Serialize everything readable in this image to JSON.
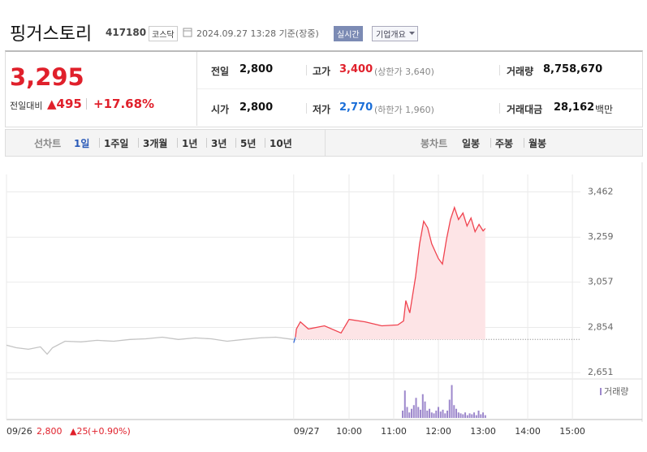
{
  "header": {
    "title": "핑거스토리",
    "code": "417180",
    "market": "코스닥",
    "timestamp": "2024.09.27 13:28 기준(장중)",
    "realtime": "실시간",
    "company_overview": "기업개요"
  },
  "quote": {
    "price": "3,295",
    "change_label": "전일대비",
    "change": "▲495",
    "change_rate": "+17.68%",
    "stats": [
      {
        "label": "전일",
        "value": "2,800"
      },
      {
        "label": "고가",
        "value": "3,400",
        "note": "(상한가 3,640)"
      },
      {
        "label": "거래량",
        "value": "8,758,670"
      },
      {
        "label": "시가",
        "value": "2,800"
      },
      {
        "label": "저가",
        "value": "2,770",
        "note": "(하한가 1,960)"
      },
      {
        "label": "거래대금",
        "value": "28,162",
        "unit": "백만"
      }
    ]
  },
  "tabs": {
    "line_chart": "선차트",
    "line_periods": [
      "1일",
      "1주일",
      "3개월",
      "1년",
      "3년",
      "5년",
      "10년"
    ],
    "candle_chart": "봉차트",
    "candle_periods": [
      "일봉",
      "주봉",
      "월봉"
    ]
  },
  "chart_data": {
    "type": "line",
    "xlim": [
      2.33,
      15.18
    ],
    "ylim": [
      2630,
      3540
    ],
    "xticks": [
      {
        "value": 2.33,
        "label": "09/26"
      },
      {
        "value": 8.76,
        "label": "09/27"
      },
      {
        "value": 10,
        "label": "10:00"
      },
      {
        "value": 11,
        "label": "11:00"
      },
      {
        "value": 12,
        "label": "12:00"
      },
      {
        "value": 13,
        "label": "13:00"
      },
      {
        "value": 14,
        "label": "14:00"
      },
      {
        "value": 15,
        "label": "15:00"
      }
    ],
    "yticks": [
      {
        "value": 3462,
        "label": "3,462"
      },
      {
        "value": 3259,
        "label": "3,259"
      },
      {
        "value": 3057,
        "label": "3,057"
      },
      {
        "value": 2854,
        "label": "2,854"
      },
      {
        "value": 2651,
        "label": "2,651"
      }
    ],
    "reference_value": 2800,
    "prev_day": {
      "close": "2,800",
      "change": "▲25",
      "rate": "(+0.90%)"
    },
    "series": [
      {
        "color": "#c4c4c4",
        "x": [
          2.33,
          2.55,
          2.82,
          3.09,
          3.24,
          3.36,
          3.64,
          4,
          4.36,
          4.73,
          5.09,
          5.45,
          5.82,
          6.18,
          6.55,
          6.91,
          7.27,
          7.64,
          8,
          8.36,
          8.75
        ],
        "values": [
          2774,
          2763,
          2756,
          2767,
          2734,
          2763,
          2792,
          2789,
          2796,
          2792,
          2800,
          2803,
          2810,
          2800,
          2807,
          2803,
          2792,
          2800,
          2807,
          2810,
          2800
        ]
      },
      {
        "color": "#3a6fd8",
        "x": [
          8.76,
          8.8
        ],
        "values": [
          2785,
          2810
        ]
      },
      {
        "color": "#f0434f",
        "fill": "#fde4e6",
        "x": [
          8.8,
          8.82,
          8.91,
          9.09,
          9.45,
          9.82,
          10,
          10.36,
          10.73,
          11.09,
          11.22,
          11.27,
          11.36,
          11.49,
          11.58,
          11.67,
          11.76,
          11.85,
          12,
          12.09,
          12.18,
          12.27,
          12.36,
          12.45,
          12.55,
          12.64,
          12.73,
          12.82,
          12.91,
          13,
          13.05
        ],
        "values": [
          2810,
          2847,
          2879,
          2847,
          2861,
          2829,
          2890,
          2879,
          2861,
          2865,
          2883,
          2974,
          2919,
          3083,
          3229,
          3330,
          3301,
          3229,
          3163,
          3138,
          3247,
          3338,
          3392,
          3338,
          3367,
          3309,
          3345,
          3283,
          3316,
          3287,
          3298
        ]
      }
    ],
    "volume": {
      "name": "거래량",
      "color": "#9d88cc",
      "ylim": [
        0,
        40
      ],
      "x": [
        11.2,
        11.25,
        11.3,
        11.35,
        11.4,
        11.45,
        11.5,
        11.55,
        11.6,
        11.65,
        11.7,
        11.75,
        11.8,
        11.85,
        11.9,
        11.95,
        12,
        12.05,
        12.1,
        12.15,
        12.2,
        12.25,
        12.3,
        12.35,
        12.4,
        12.45,
        12.5,
        12.55,
        12.6,
        12.65,
        12.7,
        12.75,
        12.8,
        12.85,
        12.9,
        12.95,
        13,
        13.05
      ],
      "values": [
        8,
        30,
        12,
        6,
        10,
        14,
        22,
        12,
        9,
        26,
        18,
        8,
        10,
        6,
        5,
        8,
        12,
        7,
        9,
        5,
        8,
        20,
        36,
        14,
        10,
        6,
        5,
        4,
        6,
        3,
        5,
        4,
        6,
        3,
        8,
        4,
        6,
        3
      ]
    }
  }
}
